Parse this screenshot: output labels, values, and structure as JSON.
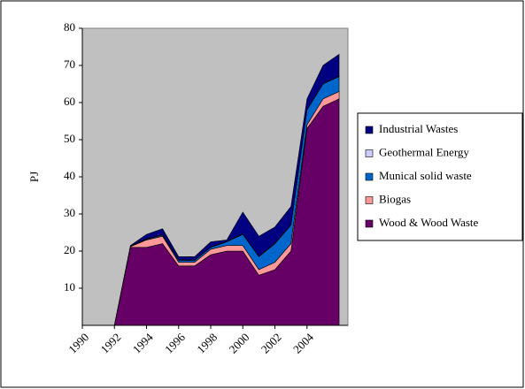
{
  "chart_data": {
    "type": "stacked_area",
    "y_label": "PJ",
    "x": [
      1990,
      1991,
      1992,
      1993,
      1994,
      1995,
      1996,
      1997,
      1998,
      1999,
      2000,
      2001,
      2002,
      2003,
      2004,
      2005,
      2006
    ],
    "xlim": [
      1990,
      2006.55
    ],
    "xticks": [
      1990,
      1992,
      1994,
      1996,
      1998,
      2000,
      2002,
      2004
    ],
    "ylim": [
      0,
      80
    ],
    "yticks": [
      10,
      20,
      30,
      40,
      50,
      60,
      70,
      80
    ],
    "grid": false,
    "legend": "right",
    "series": [
      {
        "name": "Wood & Wood Waste",
        "color": "#660066",
        "values": [
          0,
          0,
          0,
          21,
          21,
          22,
          16,
          16,
          19,
          20,
          20,
          13.5,
          15,
          20,
          53,
          59,
          61
        ]
      },
      {
        "name": "Biogas",
        "color": "#ff9999",
        "values": [
          0,
          0,
          0,
          0.2,
          2,
          2,
          1,
          1,
          1.5,
          1.5,
          1.5,
          1.5,
          2,
          2,
          1,
          2,
          2
        ]
      },
      {
        "name": "Munical solid waste",
        "color": "#0066cc",
        "values": [
          0,
          0,
          0,
          0.1,
          0.2,
          0.3,
          0.5,
          0.5,
          0.5,
          1,
          3,
          3.5,
          5,
          5,
          4,
          4,
          4
        ]
      },
      {
        "name": "Geothermal Energy",
        "color": "#ccccff",
        "values": [
          0,
          0,
          0,
          0.1,
          0.1,
          0.1,
          0.1,
          0.1,
          0.1,
          0.1,
          0.1,
          0.1,
          0.1,
          0.1,
          0.1,
          0.1,
          0.1
        ]
      },
      {
        "name": "Industrial Wastes",
        "color": "#000080",
        "values": [
          0,
          0,
          0,
          0.1,
          1.2,
          1.6,
          0.9,
          0.9,
          1.4,
          0.4,
          5.9,
          5.4,
          4.4,
          4.9,
          2.9,
          4.9,
          5.9
        ]
      }
    ]
  }
}
